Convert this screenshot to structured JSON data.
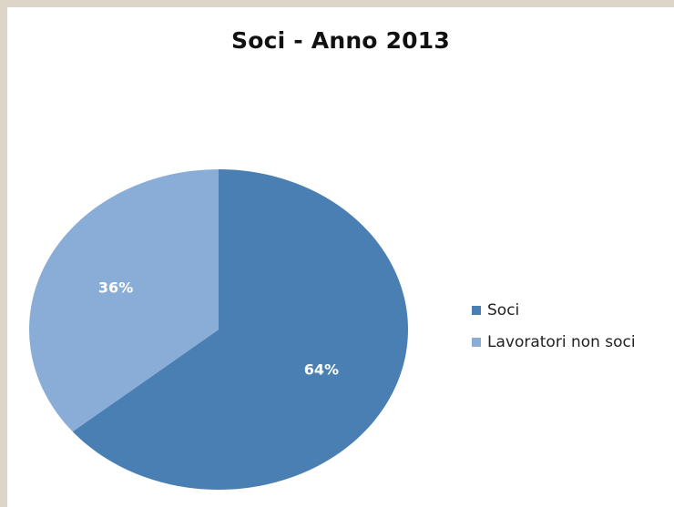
{
  "chart_data": {
    "type": "pie",
    "title": "Soci - Anno 2013",
    "slices": [
      {
        "name": "Soci",
        "value": 64,
        "label": "64%",
        "color": "#4a7fb4"
      },
      {
        "name": "Lavoratori non soci",
        "value": 36,
        "label": "36%",
        "color": "#89add6"
      }
    ],
    "start": "12 o'clock",
    "direction": "clockwise",
    "legend_position": "right"
  }
}
